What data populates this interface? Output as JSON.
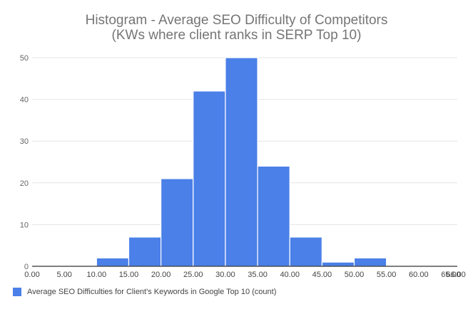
{
  "chart_data": {
    "type": "bar",
    "title": "Histogram - Average SEO Difficulty of Competitors",
    "subtitle": "(KWs where client ranks in SERP Top 10)",
    "xlabel": "",
    "ylabel": "",
    "xlim": [
      0,
      66
    ],
    "ylim": [
      0,
      50
    ],
    "x_ticks": [
      "0.00",
      "5.00",
      "10.00",
      "15.00",
      "20.00",
      "25.00",
      "30.00",
      "35.00",
      "40.00",
      "45.00",
      "50.00",
      "55.00",
      "60.00",
      "65.00",
      "66.00"
    ],
    "x_tick_values": [
      0,
      5,
      10,
      15,
      20,
      25,
      30,
      35,
      40,
      45,
      50,
      55,
      60,
      65,
      66
    ],
    "y_ticks": [
      "0",
      "10",
      "20",
      "30",
      "40",
      "50"
    ],
    "y_tick_values": [
      0,
      10,
      20,
      30,
      40,
      50
    ],
    "grid": true,
    "legend_position": "bottom-left",
    "series": [
      {
        "name": "Average SEO Difficulties for Client's Keywords in Google Top 10 (count)",
        "color": "#4a80e8",
        "bins": [
          {
            "start": 10,
            "end": 15,
            "count": 2
          },
          {
            "start": 15,
            "end": 20,
            "count": 7
          },
          {
            "start": 20,
            "end": 25,
            "count": 21
          },
          {
            "start": 25,
            "end": 30,
            "count": 42
          },
          {
            "start": 30,
            "end": 35,
            "count": 50
          },
          {
            "start": 35,
            "end": 40,
            "count": 24
          },
          {
            "start": 40,
            "end": 45,
            "count": 7
          },
          {
            "start": 45,
            "end": 50,
            "count": 1
          },
          {
            "start": 50,
            "end": 55,
            "count": 2
          }
        ]
      }
    ]
  }
}
